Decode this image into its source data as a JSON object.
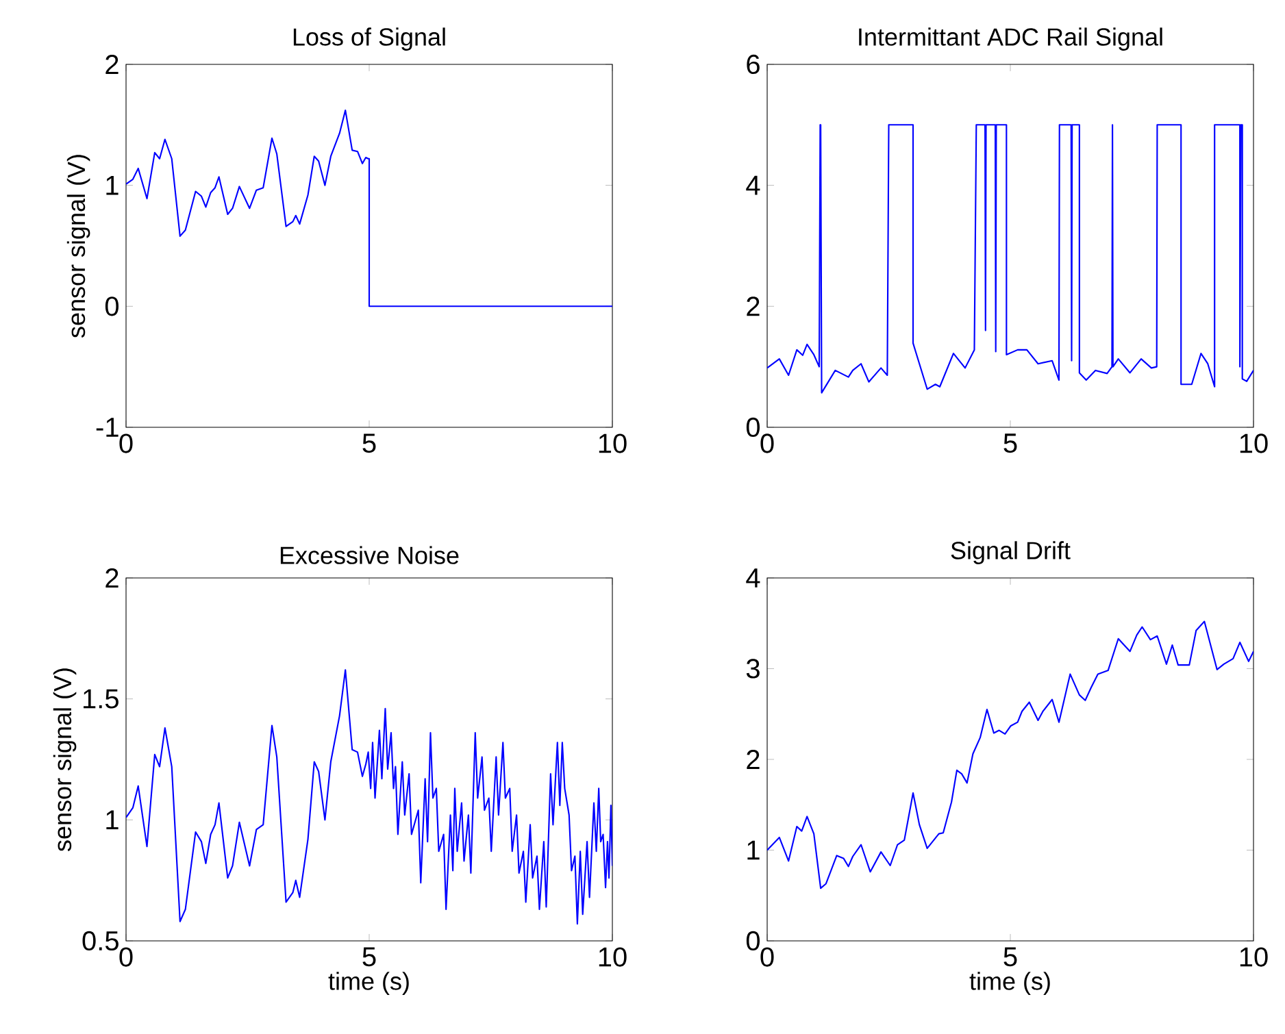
{
  "chart_data": [
    {
      "type": "line",
      "title": "Loss of Signal",
      "ylabel": "sensor signal (V)",
      "color": "#0000ff",
      "xlim": [
        0,
        10
      ],
      "ylim": [
        -1,
        2
      ],
      "xticks": [
        0,
        5,
        10
      ],
      "yticks": [
        -1,
        0,
        1,
        2
      ],
      "x": [
        0,
        0.14,
        0.25,
        0.43,
        0.59,
        0.69,
        0.8,
        0.94,
        1.11,
        1.22,
        1.43,
        1.55,
        1.64,
        1.74,
        1.83,
        1.91,
        2.09,
        2.19,
        2.33,
        2.54,
        2.68,
        2.82,
        3.0,
        3.1,
        3.29,
        3.43,
        3.49,
        3.57,
        3.74,
        3.87,
        3.96,
        4.09,
        4.21,
        4.39,
        4.51,
        4.65,
        4.76,
        4.86,
        4.93,
        4.98,
        5.0,
        5.0,
        10
      ],
      "values": [
        1.01,
        1.05,
        1.14,
        0.89,
        1.27,
        1.22,
        1.38,
        1.22,
        0.58,
        0.63,
        0.95,
        0.91,
        0.82,
        0.94,
        0.98,
        1.07,
        0.76,
        0.81,
        0.99,
        0.81,
        0.96,
        0.98,
        1.39,
        1.26,
        0.66,
        0.7,
        0.75,
        0.68,
        0.92,
        1.24,
        1.2,
        1.0,
        1.24,
        1.43,
        1.62,
        1.29,
        1.28,
        1.18,
        1.23,
        1.22,
        1.22,
        0,
        0
      ]
    },
    {
      "type": "line",
      "title": "Intermittant ADC Rail Signal",
      "color": "#0000ff",
      "xlim": [
        0,
        10
      ],
      "ylim": [
        0,
        6
      ],
      "xticks": [
        0,
        5,
        10
      ],
      "yticks": [
        0,
        2,
        4,
        6
      ],
      "x": [
        0,
        0.25,
        0.44,
        0.61,
        0.73,
        0.82,
        0.96,
        1.07,
        1.09,
        1.1,
        1.12,
        1.4,
        1.67,
        1.76,
        1.93,
        2.09,
        2.34,
        2.47,
        2.5,
        3.0,
        3.0,
        3.29,
        3.46,
        3.55,
        3.83,
        4.07,
        4.26,
        4.3,
        4.48,
        4.49,
        4.5,
        4.69,
        4.7,
        4.71,
        4.92,
        4.92,
        5.15,
        5.34,
        5.57,
        5.86,
        6.0,
        6.01,
        6.25,
        6.26,
        6.27,
        6.42,
        6.42,
        6.56,
        6.75,
        6.99,
        7.09,
        7.1,
        7.11,
        7.22,
        7.46,
        7.69,
        7.9,
        8.01,
        8.02,
        8.51,
        8.51,
        8.73,
        8.92,
        9.06,
        9.2,
        9.2,
        9.72,
        9.72,
        9.74,
        9.77,
        9.77,
        9.86,
        10
      ],
      "values": [
        0.98,
        1.13,
        0.86,
        1.28,
        1.19,
        1.37,
        1.2,
        1.0,
        5.0,
        5.0,
        0.57,
        0.94,
        0.83,
        0.94,
        1.05,
        0.75,
        0.98,
        0.86,
        5.0,
        5.0,
        1.39,
        0.63,
        0.71,
        0.67,
        1.22,
        0.98,
        1.28,
        5.0,
        5.0,
        1.6,
        5.0,
        5.0,
        1.25,
        5.0,
        5.0,
        1.2,
        1.28,
        1.28,
        1.05,
        1.1,
        0.78,
        5.0,
        5.0,
        1.1,
        5.0,
        5.0,
        0.9,
        0.78,
        0.94,
        0.89,
        1.0,
        5.0,
        1.0,
        1.13,
        0.9,
        1.13,
        0.98,
        1.0,
        5.0,
        5.0,
        0.71,
        0.71,
        1.22,
        1.05,
        0.67,
        5.0,
        5.0,
        1.0,
        5.0,
        5.0,
        0.8,
        0.76,
        0.94
      ]
    },
    {
      "type": "line",
      "title": "Excessive Noise",
      "xlabel": "time (s)",
      "ylabel": "sensor signal (V)",
      "color": "#0000ff",
      "xlim": [
        0,
        10
      ],
      "ylim": [
        0.5,
        2
      ],
      "xticks": [
        0,
        5,
        10
      ],
      "yticks": [
        0.5,
        1,
        1.5,
        2
      ],
      "x": [
        0,
        0.14,
        0.25,
        0.43,
        0.59,
        0.69,
        0.8,
        0.94,
        1.11,
        1.22,
        1.43,
        1.55,
        1.64,
        1.74,
        1.83,
        1.91,
        2.09,
        2.19,
        2.33,
        2.54,
        2.68,
        2.82,
        3.0,
        3.1,
        3.29,
        3.43,
        3.49,
        3.57,
        3.74,
        3.87,
        3.96,
        4.09,
        4.21,
        4.39,
        4.51,
        4.65,
        4.76,
        4.86,
        4.93,
        4.98,
        5.03,
        5.07,
        5.12,
        5.21,
        5.26,
        5.33,
        5.38,
        5.45,
        5.5,
        5.54,
        5.59,
        5.68,
        5.73,
        5.82,
        5.87,
        6.01,
        6.06,
        6.15,
        6.2,
        6.26,
        6.31,
        6.38,
        6.43,
        6.53,
        6.58,
        6.67,
        6.72,
        6.76,
        6.81,
        6.9,
        6.95,
        7.04,
        7.09,
        7.18,
        7.23,
        7.32,
        7.37,
        7.46,
        7.51,
        7.61,
        7.66,
        7.75,
        7.8,
        7.89,
        7.94,
        8.03,
        8.08,
        8.17,
        8.22,
        8.31,
        8.36,
        8.45,
        8.5,
        8.59,
        8.64,
        8.73,
        8.78,
        8.87,
        8.92,
        8.97,
        9.02,
        9.11,
        9.16,
        9.23,
        9.28,
        9.34,
        9.39,
        9.48,
        9.53,
        9.62,
        9.67,
        9.72,
        9.76,
        9.81,
        9.86,
        9.9,
        9.93,
        9.97,
        10
      ],
      "values": [
        1.01,
        1.05,
        1.14,
        0.89,
        1.27,
        1.22,
        1.38,
        1.22,
        0.58,
        0.63,
        0.95,
        0.91,
        0.82,
        0.94,
        0.98,
        1.07,
        0.76,
        0.81,
        0.99,
        0.81,
        0.96,
        0.98,
        1.39,
        1.26,
        0.66,
        0.7,
        0.75,
        0.68,
        0.92,
        1.24,
        1.2,
        1.0,
        1.24,
        1.43,
        1.62,
        1.29,
        1.28,
        1.18,
        1.23,
        1.28,
        1.13,
        1.32,
        1.09,
        1.37,
        1.17,
        1.46,
        1.21,
        1.36,
        1.13,
        1.22,
        0.94,
        1.24,
        1.02,
        1.19,
        0.94,
        1.04,
        0.74,
        1.17,
        0.91,
        1.36,
        1.09,
        1.13,
        0.87,
        0.94,
        0.63,
        1.02,
        0.79,
        1.13,
        0.87,
        1.07,
        0.83,
        1.02,
        0.78,
        1.36,
        1.09,
        1.26,
        1.04,
        1.09,
        0.87,
        1.26,
        1.02,
        1.32,
        1.09,
        1.13,
        0.87,
        1.02,
        0.78,
        0.87,
        0.66,
        0.98,
        0.76,
        0.85,
        0.63,
        0.91,
        0.64,
        1.19,
        0.98,
        1.32,
        1.06,
        1.32,
        1.13,
        1.02,
        0.79,
        0.85,
        0.57,
        0.87,
        0.61,
        0.91,
        0.68,
        1.07,
        0.87,
        1.13,
        0.91,
        0.94,
        0.72,
        0.91,
        0.76,
        1.06,
        0.81
      ]
    },
    {
      "type": "line",
      "title": "Signal Drift",
      "xlabel": "time (s)",
      "color": "#0000ff",
      "xlim": [
        0,
        10
      ],
      "ylim": [
        0,
        4
      ],
      "xticks": [
        0,
        5,
        10
      ],
      "yticks": [
        0,
        1,
        2,
        3,
        4
      ],
      "x": [
        0,
        0.25,
        0.44,
        0.61,
        0.71,
        0.82,
        0.96,
        1.1,
        1.21,
        1.43,
        1.57,
        1.67,
        1.76,
        1.93,
        2.12,
        2.34,
        2.53,
        2.68,
        2.82,
        3.0,
        3.13,
        3.29,
        3.53,
        3.62,
        3.79,
        3.9,
        4.0,
        4.11,
        4.23,
        4.38,
        4.52,
        4.66,
        4.77,
        4.89,
        5.01,
        5.15,
        5.24,
        5.39,
        5.57,
        5.67,
        5.86,
        6.0,
        6.23,
        6.42,
        6.54,
        6.66,
        6.8,
        7.01,
        7.22,
        7.46,
        7.6,
        7.71,
        7.88,
        8.02,
        8.21,
        8.33,
        8.45,
        8.68,
        8.82,
        8.99,
        9.25,
        9.39,
        9.58,
        9.72,
        9.9,
        10
      ],
      "values": [
        1.0,
        1.14,
        0.88,
        1.26,
        1.21,
        1.37,
        1.18,
        0.58,
        0.63,
        0.94,
        0.91,
        0.82,
        0.93,
        1.06,
        0.76,
        0.98,
        0.83,
        1.06,
        1.11,
        1.63,
        1.28,
        1.02,
        1.18,
        1.19,
        1.53,
        1.88,
        1.84,
        1.74,
        2.06,
        2.24,
        2.55,
        2.29,
        2.32,
        2.28,
        2.37,
        2.41,
        2.53,
        2.63,
        2.43,
        2.53,
        2.66,
        2.41,
        2.94,
        2.71,
        2.65,
        2.79,
        2.94,
        2.98,
        3.33,
        3.19,
        3.37,
        3.46,
        3.32,
        3.36,
        3.05,
        3.26,
        3.04,
        3.04,
        3.42,
        3.52,
        2.99,
        3.05,
        3.11,
        3.29,
        3.08,
        3.19
      ]
    }
  ]
}
